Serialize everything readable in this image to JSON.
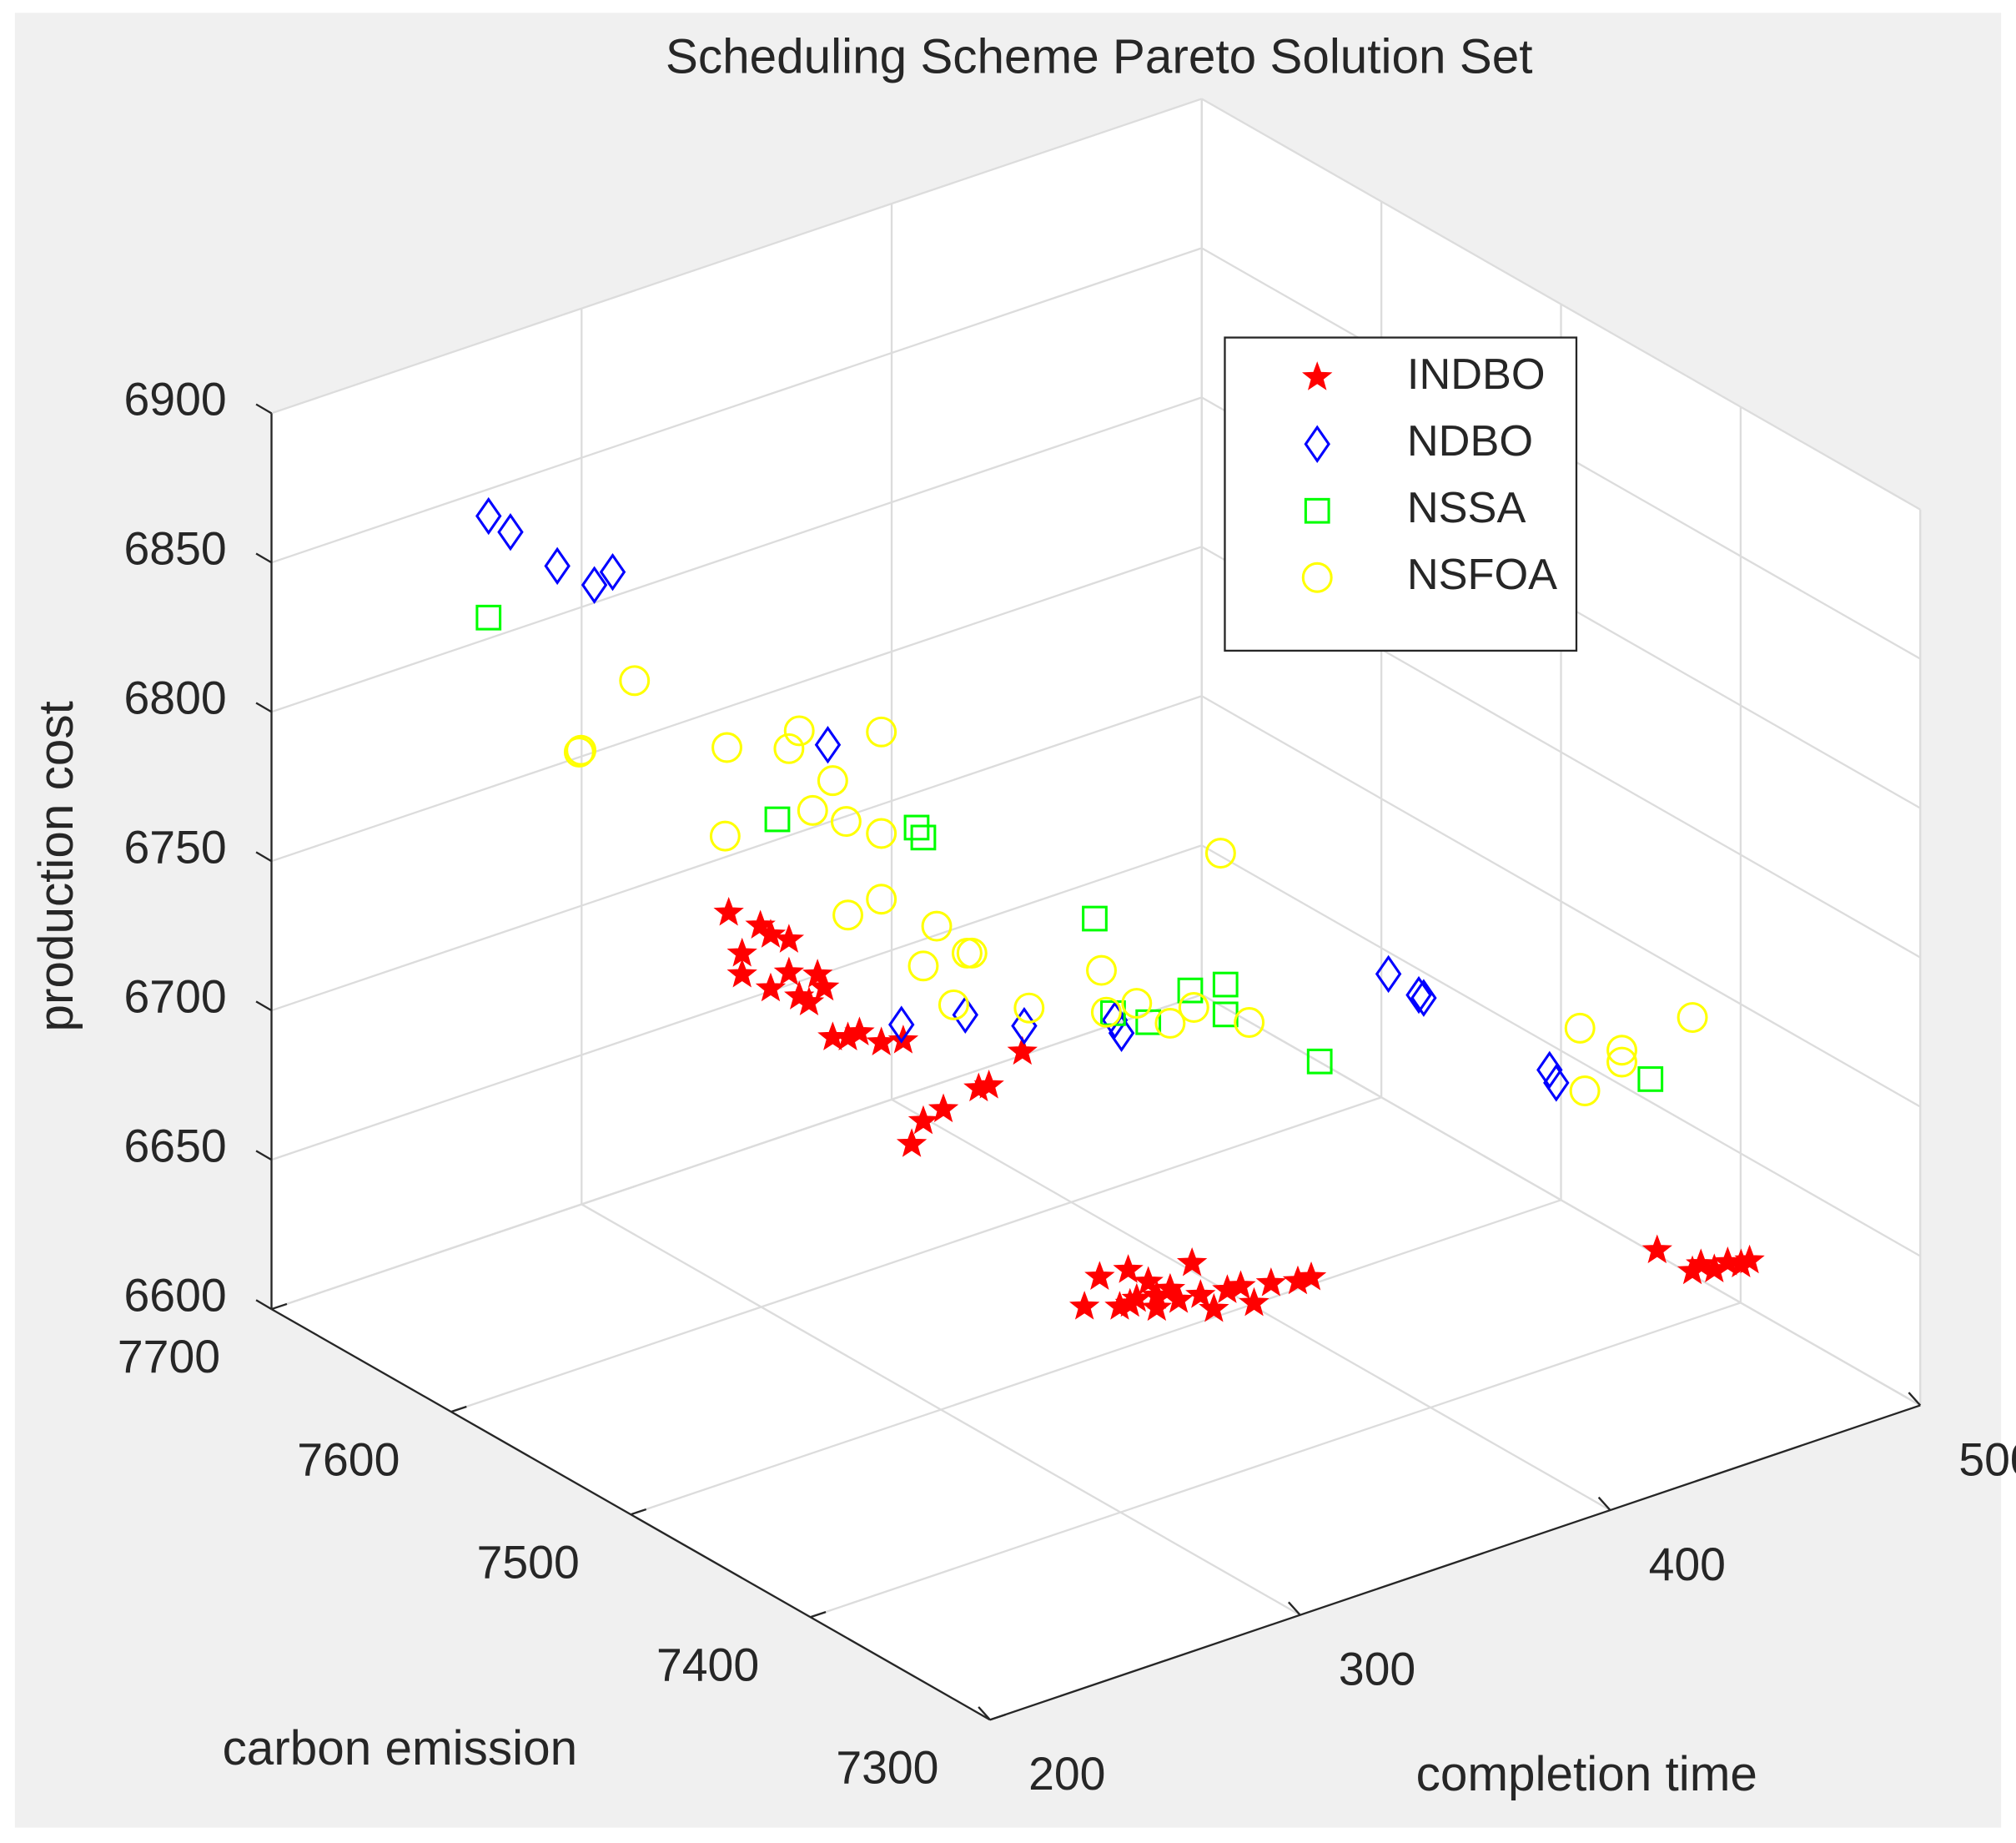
{
  "chart_data": {
    "type": "scatter3d",
    "title": "Scheduling Scheme Pareto Solution Set",
    "xlabel": "completion time",
    "ylabel": "carbon emission",
    "zlabel": "production cost",
    "xlim": [
      200,
      500
    ],
    "xticks": [
      200,
      300,
      400,
      500
    ],
    "ylim": [
      7300,
      7700
    ],
    "yticks": [
      7300,
      7400,
      7500,
      7600,
      7700
    ],
    "zlim": [
      6600,
      6900
    ],
    "zticks": [
      6600,
      6650,
      6700,
      6750,
      6800,
      6850,
      6900
    ],
    "grid": true,
    "legend": "northeast",
    "series": [
      {
        "name": "INDBO",
        "color": "#ff0000",
        "marker": "star",
        "x": [
          304,
          306,
          306,
          309,
          310,
          313,
          310,
          313,
          314,
          316,
          317,
          318,
          319,
          321,
          323,
          326,
          329,
          330,
          332,
          335,
          340,
          341,
          346,
          355,
          357,
          360,
          361,
          362,
          364,
          365,
          367,
          368,
          370,
          371,
          373,
          375,
          377,
          379,
          381,
          385,
          387,
          365,
          361,
          436,
          441,
          442,
          444,
          446,
          448,
          449
        ],
        "y": [
          7625,
          7621,
          7621,
          7616,
          7612,
          7607,
          7612,
          7607,
          7603,
          7601,
          7598,
          7596,
          7593,
          7588,
          7585,
          7578,
          7571,
          7568,
          7565,
          7559,
          7548,
          7544,
          7534,
          7515,
          7510,
          7504,
          7501,
          7498,
          7495,
          7492,
          7488,
          7485,
          7481,
          7478,
          7474,
          7470,
          7466,
          7462,
          7456,
          7448,
          7444,
          7492,
          7500,
          7336,
          7325,
          7322,
          7318,
          7314,
          7310,
          7307
        ],
        "z": [
          6722,
          6709,
          6702,
          6719,
          6717,
          6716,
          6699,
          6705,
          6698,
          6696,
          6706,
          6702,
          6686,
          6687,
          6689,
          6687,
          6689,
          6655,
          6663,
          6668,
          6677,
          6679,
          6692,
          6610,
          6621,
          6612,
          6625,
          6616,
          6622,
          6618,
          6621,
          6618,
          6631,
          6621,
          6617,
          6624,
          6626,
          6621,
          6629,
          6631,
          6633,
          6614,
          6614,
          6662,
          6657,
          6660,
          6659,
          6662,
          6662,
          6664
        ]
      },
      {
        "name": "NDBO",
        "color": "#0000ff",
        "marker": "diamond",
        "x": [
          270,
          273,
          280,
          285,
          288,
          318,
          329,
          338,
          346,
          359,
          360,
          398,
          402,
          403,
          421,
          422
        ],
        "y": [
          7700,
          7693,
          7679,
          7667,
          7662,
          7594,
          7572,
          7552,
          7533,
          7505,
          7503,
          7420,
          7410,
          7409,
          7370,
          7368
        ],
        "z": [
          6841,
          6837,
          6828,
          6824,
          6829,
          6784,
          6694,
          6701,
          6701,
          6708,
          6704,
          6739,
          6734,
          6733,
          6716,
          6712
        ]
      },
      {
        "name": "NSSA",
        "color": "#00ff00",
        "marker": "square",
        "x": [
          270,
          311,
          331,
          332,
          356,
          359,
          364,
          370,
          375,
          375,
          388,
          435
        ],
        "y": [
          7700,
          7610,
          7567,
          7565,
          7511,
          7506,
          7495,
          7482,
          7471,
          7471,
          7441,
          7338
        ],
        "z": [
          6807,
          6756,
          6761,
          6758,
          6741,
          6710,
          6709,
          6722,
          6726,
          6716,
          6706,
          6719
        ]
      },
      {
        "name": "NSFOA",
        "color": "#ffff00",
        "marker": "circle",
        "x": [
          291,
          283,
          283,
          304,
          313,
          314,
          319,
          326,
          316,
          321,
          304,
          326,
          321,
          326,
          334,
          338,
          339,
          332,
          336,
          347,
          357,
          358,
          362,
          367,
          370,
          378,
          374,
          425,
          431,
          431,
          441,
          426
        ],
        "y": [
          7655,
          7671,
          7672,
          7626,
          7607,
          7603,
          7593,
          7578,
          7599,
          7589,
          7627,
          7578,
          7588,
          7578,
          7561,
          7551,
          7550,
          7565,
          7555,
          7532,
          7509,
          7508,
          7498,
          7488,
          7480,
          7463,
          7472,
          7360,
          7347,
          7347,
          7325,
          7359
        ],
        "z": [
          6794,
          6768,
          6767,
          6777,
          6780,
          6787,
          6772,
          6791,
          6761,
          6759,
          6747,
          6757,
          6728,
          6735,
          6729,
          6722,
          6722,
          6715,
          6704,
          6707,
          6724,
          6710,
          6715,
          6710,
          6717,
          6715,
          6770,
          6732,
          6727,
          6723,
          6742,
          6711
        ]
      }
    ]
  }
}
